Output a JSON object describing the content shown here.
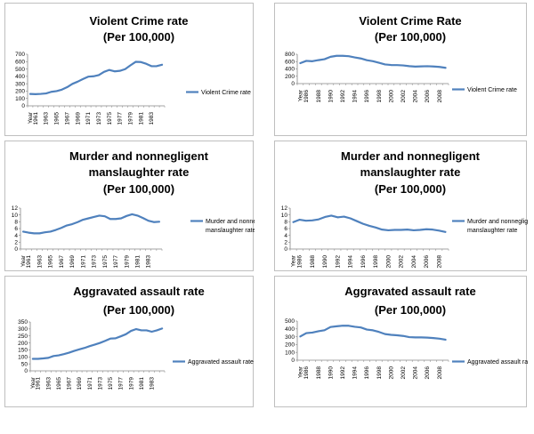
{
  "style": {
    "line_color": "#4f81bd",
    "axis_color": "#868686",
    "border_color": "#bfbfbf"
  },
  "chart_data": [
    {
      "type": "line",
      "title_lines": [
        "Violent Crime rate",
        "(Per 100,000)"
      ],
      "x_first_label": "Year",
      "x_tick_labels": [
        "1961",
        "1963",
        "1965",
        "1967",
        "1969",
        "1971",
        "1973",
        "1975",
        "1977",
        "1979",
        "1981",
        "1983"
      ],
      "x": [
        1960,
        1961,
        1962,
        1963,
        1964,
        1965,
        1966,
        1967,
        1968,
        1969,
        1970,
        1971,
        1972,
        1973,
        1974,
        1975,
        1976,
        1977,
        1978,
        1979,
        1980,
        1981,
        1982,
        1983,
        1984,
        1985
      ],
      "y_ticks": [
        0,
        100,
        200,
        300,
        400,
        500,
        600,
        700
      ],
      "ylim": [
        0,
        700
      ],
      "series": [
        {
          "name": "Violent Crime rate",
          "values": [
            161,
            158,
            162,
            168,
            190,
            200,
            220,
            253,
            298,
            328,
            363,
            396,
            401,
            417,
            461,
            487,
            468,
            475,
            498,
            549,
            597,
            594,
            571,
            538,
            539,
            558
          ]
        }
      ]
    },
    {
      "type": "line",
      "title_lines": [
        "Violent Crime Rate",
        "(Per 100,000)"
      ],
      "x_first_label": "Year",
      "x_tick_labels": [
        "1986",
        "1988",
        "1990",
        "1992",
        "1994",
        "1996",
        "1998",
        "2000",
        "2002",
        "2004",
        "2006",
        "2008"
      ],
      "x": [
        1985,
        1986,
        1987,
        1988,
        1989,
        1990,
        1991,
        1992,
        1993,
        1994,
        1995,
        1996,
        1997,
        1998,
        1999,
        2000,
        2001,
        2002,
        2003,
        2004,
        2005,
        2006,
        2007,
        2008,
        2009
      ],
      "y_ticks": [
        0,
        200,
        400,
        600,
        800
      ],
      "ylim": [
        0,
        800
      ],
      "series": [
        {
          "name": "Violent Crime rate",
          "values": [
            558,
            620,
            610,
            640,
            665,
            730,
            758,
            758,
            747,
            714,
            685,
            637,
            611,
            568,
            523,
            507,
            505,
            495,
            476,
            463,
            469,
            474,
            467,
            455,
            430
          ]
        }
      ]
    },
    {
      "type": "line",
      "title_lines": [
        "Murder and nonnegligent",
        "manslaughter rate",
        "(Per 100,000)"
      ],
      "x_first_label": "Year",
      "x_tick_labels": [
        "1961",
        "1963",
        "1965",
        "1967",
        "1969",
        "1971",
        "1973",
        "1975",
        "1977",
        "1979",
        "1981",
        "1983"
      ],
      "x": [
        1960,
        1961,
        1962,
        1963,
        1964,
        1965,
        1966,
        1967,
        1968,
        1969,
        1970,
        1971,
        1972,
        1973,
        1974,
        1975,
        1976,
        1977,
        1978,
        1979,
        1980,
        1981,
        1982,
        1983,
        1984,
        1985
      ],
      "y_ticks": [
        0,
        2,
        4,
        6,
        8,
        10,
        12
      ],
      "ylim": [
        0,
        12
      ],
      "series": [
        {
          "name": "Murder and nonnegligent manslaughter rate",
          "values": [
            5.1,
            4.8,
            4.6,
            4.6,
            4.9,
            5.1,
            5.6,
            6.2,
            6.9,
            7.3,
            7.9,
            8.6,
            9.0,
            9.4,
            9.8,
            9.6,
            8.8,
            8.8,
            9.0,
            9.7,
            10.2,
            9.8,
            9.1,
            8.3,
            7.9,
            8.0
          ]
        }
      ]
    },
    {
      "type": "line",
      "title_lines": [
        "Murder and nonnegligent",
        "manslaughter rate",
        "(Per 100,000)"
      ],
      "x_first_label": "Year",
      "x_tick_labels": [
        "1986",
        "1988",
        "1990",
        "1992",
        "1994",
        "1996",
        "1998",
        "2000",
        "2002",
        "2004",
        "2006",
        "2008"
      ],
      "x": [
        1985,
        1986,
        1987,
        1988,
        1989,
        1990,
        1991,
        1992,
        1993,
        1994,
        1995,
        1996,
        1997,
        1998,
        1999,
        2000,
        2001,
        2002,
        2003,
        2004,
        2005,
        2006,
        2007,
        2008,
        2009
      ],
      "y_ticks": [
        0,
        2,
        4,
        6,
        8,
        10,
        12
      ],
      "ylim": [
        0,
        12
      ],
      "series": [
        {
          "name": "Murder and nonnegligent manslaughter rate",
          "values": [
            7.9,
            8.6,
            8.3,
            8.4,
            8.7,
            9.4,
            9.8,
            9.3,
            9.5,
            9.0,
            8.2,
            7.4,
            6.8,
            6.3,
            5.7,
            5.5,
            5.6,
            5.6,
            5.7,
            5.5,
            5.6,
            5.8,
            5.7,
            5.4,
            5.0
          ]
        }
      ]
    },
    {
      "type": "line",
      "title_lines": [
        "Aggravated assault rate",
        "(Per 100,000)"
      ],
      "x_first_label": "Year",
      "x_tick_labels": [
        "1961",
        "1963",
        "1965",
        "1967",
        "1969",
        "1971",
        "1973",
        "1975",
        "1977",
        "1979",
        "1981",
        "1983"
      ],
      "x": [
        1960,
        1961,
        1962,
        1963,
        1964,
        1965,
        1966,
        1967,
        1968,
        1969,
        1970,
        1971,
        1972,
        1973,
        1974,
        1975,
        1976,
        1977,
        1978,
        1979,
        1980,
        1981,
        1982,
        1983,
        1984,
        1985
      ],
      "y_ticks": [
        0,
        50,
        100,
        150,
        200,
        250,
        300,
        350
      ],
      "ylim": [
        0,
        350
      ],
      "series": [
        {
          "name": "Aggravated assault rate",
          "values": [
            86,
            86,
            89,
            93,
            106,
            111,
            120,
            130,
            143,
            154,
            164,
            177,
            188,
            200,
            215,
            231,
            233,
            247,
            262,
            286,
            299,
            290,
            290,
            280,
            290,
            303
          ]
        }
      ]
    },
    {
      "type": "line",
      "title_lines": [
        "Aggravated assault rate",
        "(Per 100,000)"
      ],
      "x_first_label": "Year",
      "x_tick_labels": [
        "1986",
        "1988",
        "1990",
        "1992",
        "1994",
        "1996",
        "1998",
        "2000",
        "2002",
        "2004",
        "2006",
        "2008"
      ],
      "x": [
        1985,
        1986,
        1987,
        1988,
        1989,
        1990,
        1991,
        1992,
        1993,
        1994,
        1995,
        1996,
        1997,
        1998,
        1999,
        2000,
        2001,
        2002,
        2003,
        2004,
        2005,
        2006,
        2007,
        2008,
        2009
      ],
      "y_ticks": [
        0,
        100,
        200,
        300,
        400,
        500
      ],
      "ylim": [
        0,
        500
      ],
      "series": [
        {
          "name": "Aggravated assault rate",
          "values": [
            303,
            346,
            353,
            370,
            383,
            424,
            433,
            441,
            440,
            427,
            418,
            391,
            382,
            361,
            334,
            324,
            318,
            310,
            295,
            291,
            291,
            288,
            283,
            275,
            262
          ]
        }
      ]
    }
  ]
}
